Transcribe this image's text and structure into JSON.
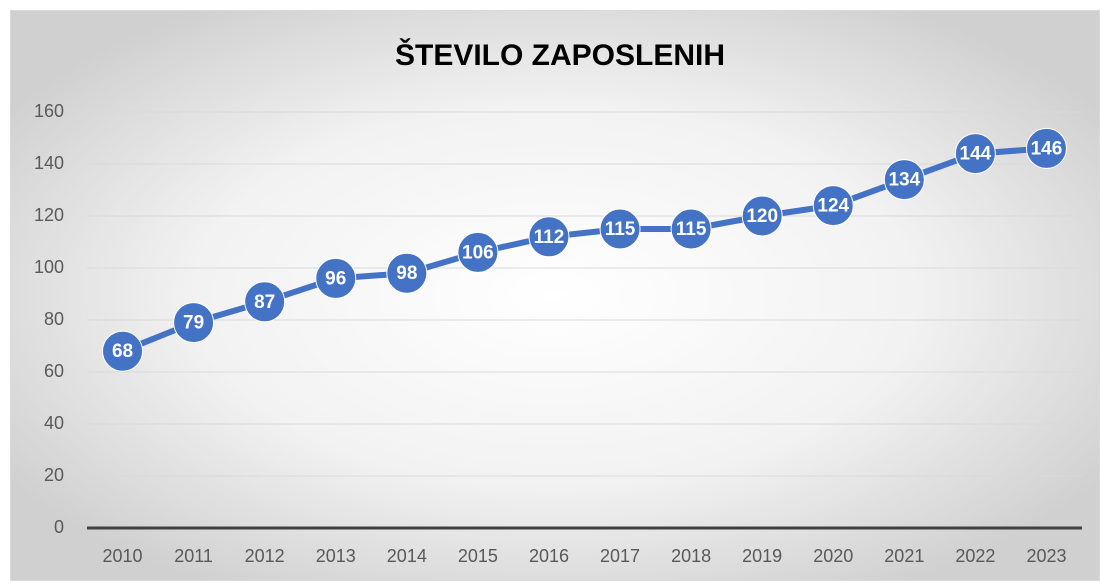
{
  "chart_data": {
    "type": "line",
    "title": "ŠTEVILO ZAPOSLENIH",
    "categories": [
      "2010",
      "2011",
      "2012",
      "2013",
      "2014",
      "2015",
      "2016",
      "2017",
      "2018",
      "2019",
      "2020",
      "2021",
      "2022",
      "2023"
    ],
    "series": [
      {
        "name": "Število zaposlenih",
        "color": "#4472c4",
        "values": [
          68,
          79,
          87,
          96,
          98,
          106,
          112,
          115,
          115,
          120,
          124,
          134,
          144,
          146
        ]
      }
    ],
    "ylim": [
      0,
      160
    ],
    "yticks": [
      0,
      20,
      40,
      60,
      80,
      100,
      120,
      140,
      160
    ],
    "grid": true,
    "data_labels": true
  }
}
